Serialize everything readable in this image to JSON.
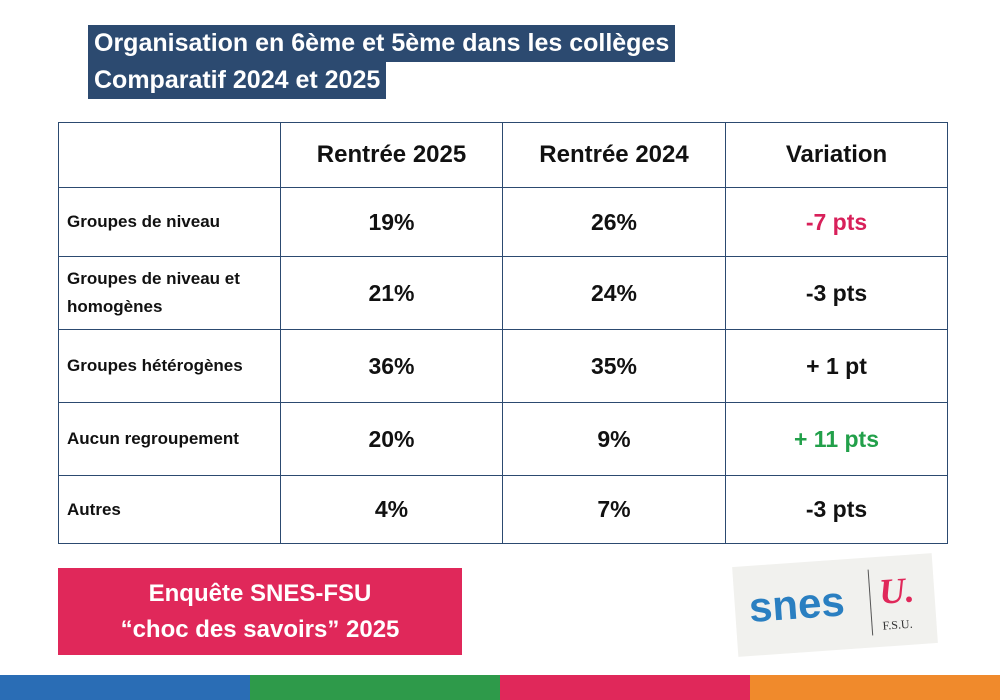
{
  "header": {
    "title_lines": [
      "Organisation en 6ème et 5ème dans les collèges",
      "Comparatif 2024 et 2025"
    ]
  },
  "table": {
    "header": [
      "Rentrée 2025",
      "Rentrée 2024",
      "Variation"
    ],
    "rows": [
      {
        "label": "Groupes de niveau",
        "cells": [
          "19%",
          "26%",
          "-7 pts"
        ]
      },
      {
        "label": "Groupes de niveau et homogènes",
        "cells": [
          "21%",
          "24%",
          "-3 pts"
        ]
      },
      {
        "label": "Groupes hétérogènes",
        "cells": [
          "36%",
          "35%",
          "+ 1 pt"
        ]
      },
      {
        "label": "Aucun regroupement",
        "cells": [
          "20%",
          "9%",
          "+ 11 pts"
        ]
      },
      {
        "label": "Autres",
        "cells": [
          "4%",
          "7%",
          "-3 pts"
        ]
      }
    ]
  },
  "badge": {
    "lines": [
      "Enquête SNES-FSU",
      "“choc des savoirs” 2025"
    ]
  },
  "logo": {
    "name": "snes",
    "mark": "U.",
    "org": "F.S.U."
  }
}
